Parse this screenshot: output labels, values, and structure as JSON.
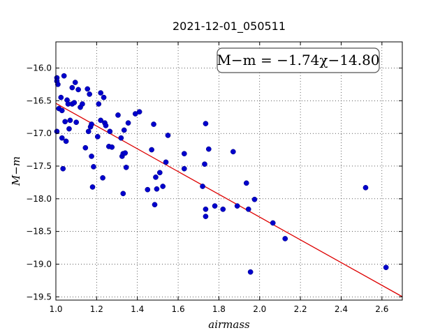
{
  "chart_data": {
    "type": "scatter",
    "title": "2021-12-01_050511",
    "xlabel": "airmass",
    "ylabel": "M−m",
    "xlim": [
      1.0,
      2.7
    ],
    "ylim": [
      -19.55,
      -15.6
    ],
    "y_inverted": true,
    "grid": true,
    "x_ticks": [
      1.0,
      1.2,
      1.4,
      1.6,
      1.8,
      2.0,
      2.2,
      2.4,
      2.6
    ],
    "x_tick_labels": [
      "1.0",
      "1.2",
      "1.4",
      "1.6",
      "1.8",
      "2.0",
      "2.2",
      "2.4",
      "2.6"
    ],
    "y_ticks": [
      -16.0,
      -16.5,
      -17.0,
      -17.5,
      -18.0,
      -18.5,
      -19.0,
      -19.5
    ],
    "y_tick_labels": [
      "−16.0",
      "−16.5",
      "−17.0",
      "−17.5",
      "−18.0",
      "−18.5",
      "−19.0",
      "−19.5"
    ],
    "annotation": "M−m = −1.74χ−14.80",
    "annotation_placement": "top-right",
    "point_color": "#0000cc",
    "fit_color": "#dd0000",
    "fit": {
      "slope": -1.74,
      "intercept": -14.8,
      "x_range": [
        1.0,
        2.7
      ]
    },
    "points": [
      [
        1.005,
        -16.15
      ],
      [
        1.005,
        -16.2
      ],
      [
        1.01,
        -16.25
      ],
      [
        1.015,
        -16.62
      ],
      [
        1.005,
        -16.97
      ],
      [
        1.025,
        -16.45
      ],
      [
        1.03,
        -16.65
      ],
      [
        1.03,
        -17.07
      ],
      [
        1.035,
        -17.54
      ],
      [
        1.04,
        -16.12
      ],
      [
        1.045,
        -16.82
      ],
      [
        1.05,
        -17.12
      ],
      [
        1.055,
        -16.49
      ],
      [
        1.06,
        -16.55
      ],
      [
        1.065,
        -16.93
      ],
      [
        1.07,
        -16.8
      ],
      [
        1.08,
        -16.55
      ],
      [
        1.08,
        -16.3
      ],
      [
        1.09,
        -16.53
      ],
      [
        1.095,
        -16.22
      ],
      [
        1.1,
        -16.83
      ],
      [
        1.11,
        -16.33
      ],
      [
        1.12,
        -16.6
      ],
      [
        1.13,
        -16.55
      ],
      [
        1.145,
        -17.22
      ],
      [
        1.155,
        -16.32
      ],
      [
        1.16,
        -16.97
      ],
      [
        1.165,
        -16.4
      ],
      [
        1.17,
        -16.9
      ],
      [
        1.175,
        -16.86
      ],
      [
        1.175,
        -17.35
      ],
      [
        1.18,
        -17.82
      ],
      [
        1.185,
        -17.51
      ],
      [
        1.205,
        -17.05
      ],
      [
        1.21,
        -16.55
      ],
      [
        1.22,
        -16.38
      ],
      [
        1.22,
        -16.8
      ],
      [
        1.23,
        -17.68
      ],
      [
        1.235,
        -16.45
      ],
      [
        1.24,
        -16.84
      ],
      [
        1.245,
        -16.88
      ],
      [
        1.26,
        -17.2
      ],
      [
        1.265,
        -16.97
      ],
      [
        1.275,
        -17.21
      ],
      [
        1.305,
        -16.72
      ],
      [
        1.32,
        -17.07
      ],
      [
        1.325,
        -17.35
      ],
      [
        1.33,
        -17.31
      ],
      [
        1.33,
        -17.92
      ],
      [
        1.335,
        -16.95
      ],
      [
        1.34,
        -17.3
      ],
      [
        1.345,
        -17.52
      ],
      [
        1.355,
        -16.84
      ],
      [
        1.39,
        -16.7
      ],
      [
        1.41,
        -16.67
      ],
      [
        1.45,
        -17.86
      ],
      [
        1.47,
        -17.25
      ],
      [
        1.48,
        -16.86
      ],
      [
        1.485,
        -18.09
      ],
      [
        1.49,
        -17.67
      ],
      [
        1.495,
        -17.85
      ],
      [
        1.51,
        -17.6
      ],
      [
        1.525,
        -17.81
      ],
      [
        1.54,
        -17.44
      ],
      [
        1.55,
        -17.03
      ],
      [
        1.63,
        -17.31
      ],
      [
        1.63,
        -17.54
      ],
      [
        1.72,
        -17.81
      ],
      [
        1.73,
        -17.47
      ],
      [
        1.735,
        -16.85
      ],
      [
        1.735,
        -18.16
      ],
      [
        1.735,
        -18.27
      ],
      [
        1.75,
        -17.24
      ],
      [
        1.78,
        -18.11
      ],
      [
        1.82,
        -18.16
      ],
      [
        1.87,
        -17.28
      ],
      [
        1.89,
        -18.11
      ],
      [
        1.935,
        -17.76
      ],
      [
        1.945,
        -18.16
      ],
      [
        1.955,
        -19.12
      ],
      [
        1.975,
        -18.01
      ],
      [
        2.065,
        -18.37
      ],
      [
        2.125,
        -18.61
      ],
      [
        2.52,
        -17.83
      ],
      [
        2.62,
        -19.05
      ]
    ]
  }
}
